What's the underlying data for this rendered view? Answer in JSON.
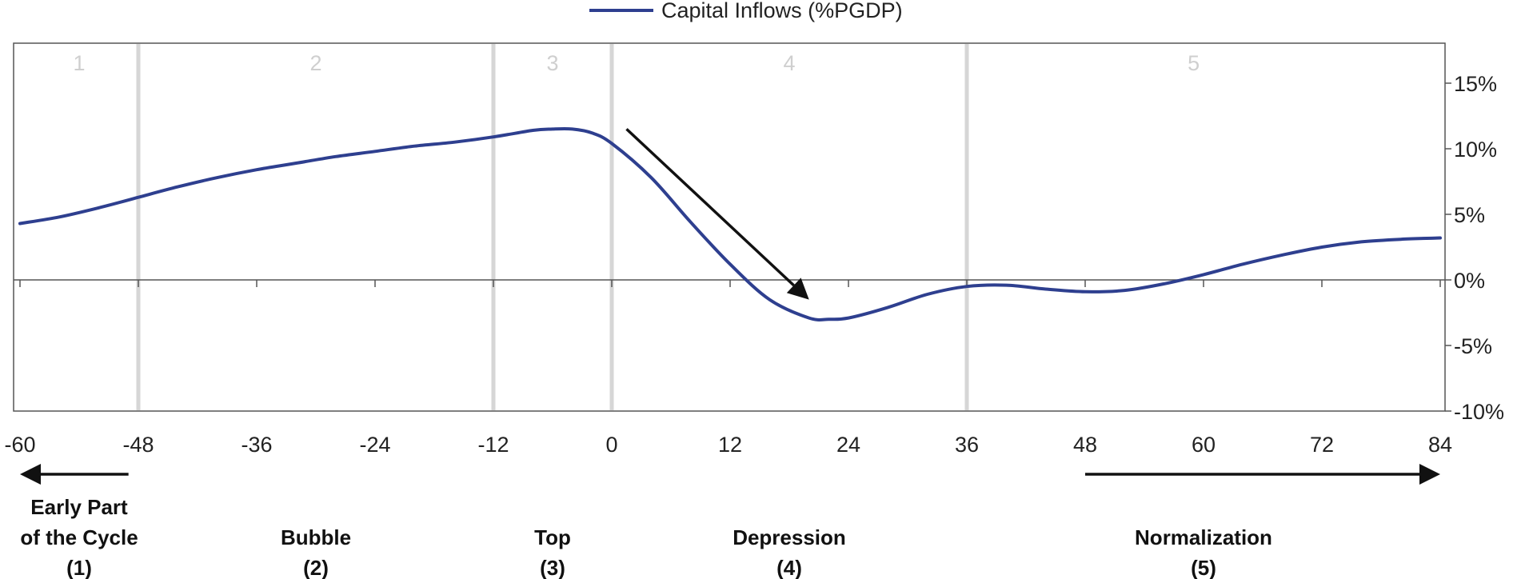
{
  "chart_data": {
    "type": "line",
    "legend": {
      "label": "Capital Inflows (%PGDP)",
      "position": "top-center"
    },
    "series": [
      {
        "name": "Capital Inflows (%PGDP)",
        "color": "#2e3f8f",
        "x": [
          -60,
          -56,
          -52,
          -48,
          -44,
          -40,
          -36,
          -32,
          -28,
          -24,
          -20,
          -16,
          -12,
          -8,
          -6,
          -4,
          -2,
          0,
          4,
          8,
          12,
          16,
          20,
          22,
          24,
          28,
          32,
          36,
          40,
          44,
          48,
          52,
          56,
          60,
          64,
          68,
          72,
          76,
          80,
          84
        ],
        "y": [
          4.3,
          4.8,
          5.5,
          6.3,
          7.1,
          7.8,
          8.4,
          8.9,
          9.4,
          9.8,
          10.2,
          10.5,
          10.9,
          11.4,
          11.5,
          11.5,
          11.2,
          10.4,
          7.8,
          4.4,
          1.2,
          -1.5,
          -2.9,
          -3.0,
          -2.9,
          -2.1,
          -1.1,
          -0.5,
          -0.4,
          -0.7,
          -0.9,
          -0.8,
          -0.3,
          0.4,
          1.2,
          1.9,
          2.5,
          2.9,
          3.1,
          3.2
        ]
      }
    ],
    "x_ticks": [
      "-60",
      "-48",
      "-36",
      "-24",
      "-12",
      "0",
      "12",
      "24",
      "36",
      "48",
      "60",
      "72",
      "84"
    ],
    "xlim": [
      -60,
      84
    ],
    "y_ticks": [
      "15%",
      "10%",
      "5%",
      "0%",
      "-5%",
      "-10%"
    ],
    "ylim": [
      -10,
      18
    ],
    "y_axis_side": "right",
    "grid": false,
    "phase_boundaries": [
      -48,
      -12,
      0,
      36
    ],
    "phases": [
      {
        "number": "1",
        "label_lines": [
          "Early Part",
          "of the Cycle",
          "(1)"
        ],
        "number_x": -54,
        "label_x": -54
      },
      {
        "number": "2",
        "label_lines": [
          "Bubble",
          "(2)"
        ],
        "number_x": -30,
        "label_x": -30
      },
      {
        "number": "3",
        "label_lines": [
          "Top",
          "(3)"
        ],
        "number_x": -6,
        "label_x": -6
      },
      {
        "number": "4",
        "label_lines": [
          "Depression",
          "(4)"
        ],
        "number_x": 18,
        "label_x": 18
      },
      {
        "number": "5",
        "label_lines": [
          "Normalization",
          "(5)"
        ],
        "number_x": 59,
        "label_x": 60
      }
    ],
    "annotations": [
      {
        "type": "arrow",
        "from": [
          1.5,
          11.5
        ],
        "to": [
          20,
          -1.5
        ],
        "direction": "down-right"
      }
    ],
    "bottom_arrows": [
      {
        "direction": "left",
        "from_x": -49,
        "to_x": -60
      },
      {
        "direction": "right",
        "from_x": 48,
        "to_x": 84
      }
    ]
  }
}
